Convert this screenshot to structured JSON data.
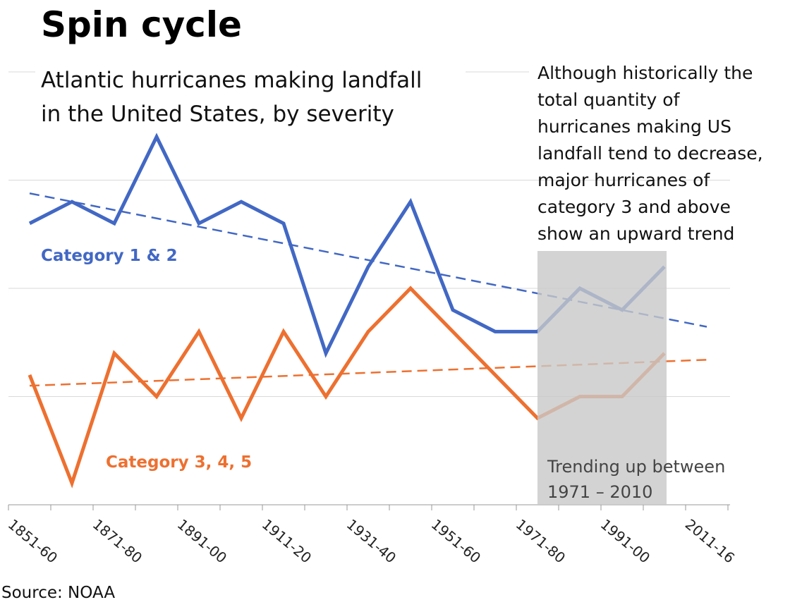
{
  "chart_data": {
    "type": "line",
    "title": "Spin cycle",
    "subtitle": [
      "Atlantic hurricanes making landfall",
      "in the United States, by severity"
    ],
    "annotation": [
      "Although historically the",
      "total quantity of",
      "hurricanes making US",
      "landfall tend to decrease,",
      "major hurricanes of",
      "category 3 and above",
      "show an upward trend"
    ],
    "highlight_label": [
      "Trending up between",
      "1971 – 2010"
    ],
    "source": "Source: NOAA",
    "categories": [
      "1851-60",
      null,
      "1871-80",
      null,
      "1891-00",
      null,
      "1911-20",
      null,
      "1931-40",
      null,
      "1951-60",
      null,
      "1971-80",
      null,
      "1991-00",
      null,
      "2011-16"
    ],
    "series": [
      {
        "name": "Category 1 & 2",
        "color": "#4268c4",
        "values": [
          13,
          14,
          13,
          17,
          13,
          14,
          13,
          7,
          11,
          14,
          9,
          8,
          8,
          10,
          9,
          11,
          null
        ]
      },
      {
        "name": "Category 3, 4, 5",
        "color": "#ed7030",
        "values": [
          6,
          1,
          7,
          5,
          8,
          4,
          8,
          5,
          8,
          10,
          8,
          6,
          4,
          5,
          5,
          7,
          null
        ]
      }
    ],
    "trendline": "linear",
    "ylim": [
      0,
      20
    ],
    "yticks": [
      0,
      5,
      10,
      15,
      20
    ],
    "grid": true
  }
}
